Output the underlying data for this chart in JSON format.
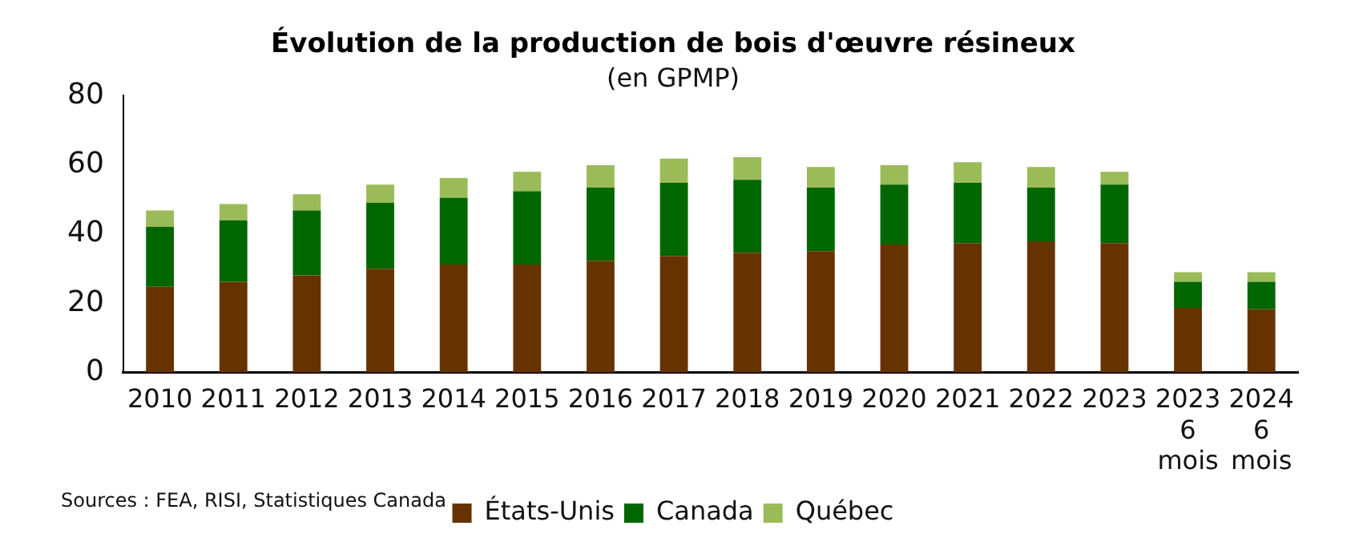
{
  "chart_data": {
    "type": "bar",
    "title": "Évolution de la production de bois d'œuvre résineux",
    "subtitle": "(en GPMP)",
    "categories": [
      "2010",
      "2011",
      "2012",
      "2013",
      "2014",
      "2015",
      "2016",
      "2017",
      "2018",
      "2019",
      "2020",
      "2021",
      "2022",
      "2023",
      "2023 6 mois",
      "2024 6 mois"
    ],
    "stacked": true,
    "series": [
      {
        "name": "États-Unis",
        "color": "#663300",
        "values": [
          24.8,
          26.2,
          28.1,
          30.0,
          31.2,
          31.2,
          32.3,
          33.7,
          34.6,
          35.1,
          37.0,
          37.4,
          37.9,
          37.4,
          18.7,
          18.3
        ]
      },
      {
        "name": "Canada",
        "color": "#006600",
        "values": [
          17.3,
          17.8,
          18.7,
          19.0,
          19.3,
          21.2,
          21.1,
          21.1,
          21.1,
          18.3,
          17.3,
          17.4,
          15.5,
          16.9,
          7.5,
          7.9
        ]
      },
      {
        "name": "Québec",
        "color": "#9bbb59",
        "values": [
          4.7,
          4.7,
          4.7,
          5.3,
          5.7,
          5.6,
          6.5,
          7.0,
          6.5,
          6.0,
          5.6,
          6.0,
          6.0,
          3.7,
          2.8,
          2.8
        ]
      }
    ],
    "ylim": [
      0,
      80
    ],
    "yticks": [
      0,
      20,
      40,
      60,
      80
    ],
    "grid": false,
    "legend": "bottom",
    "annotations": [
      "Sources : FEA, RISI, Statistiques Canada"
    ]
  }
}
